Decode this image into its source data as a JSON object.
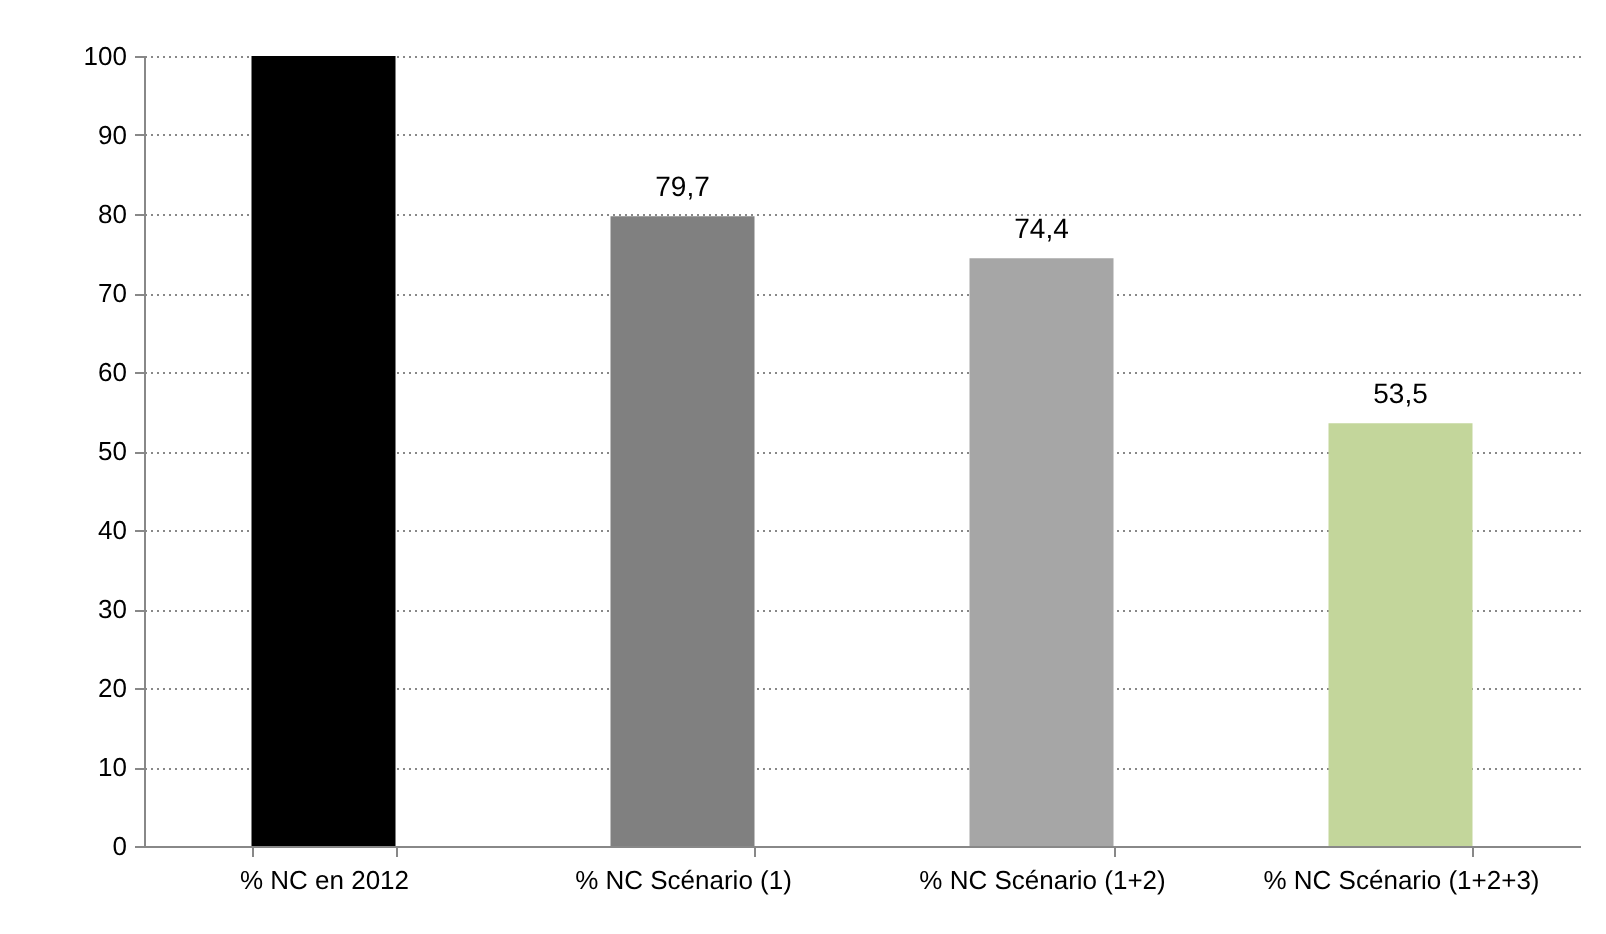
{
  "chart_data": {
    "type": "bar",
    "categories": [
      "% NC en 2012",
      "% NC Scénario (1)",
      "% NC Scénario (1+2)",
      "% NC Scénario (1+2+3)"
    ],
    "values": [
      100,
      79.7,
      74.4,
      53.5
    ],
    "colors": [
      "#000000",
      "#808080",
      "#a6a6a6",
      "#c3d69b"
    ],
    "value_labels": [
      null,
      "79,7",
      "74,4",
      "53,5"
    ],
    "ylim": [
      0,
      100
    ],
    "yticks": [
      0,
      10,
      20,
      30,
      40,
      50,
      60,
      70,
      80,
      90,
      100
    ],
    "grid": "y",
    "legend": false
  }
}
